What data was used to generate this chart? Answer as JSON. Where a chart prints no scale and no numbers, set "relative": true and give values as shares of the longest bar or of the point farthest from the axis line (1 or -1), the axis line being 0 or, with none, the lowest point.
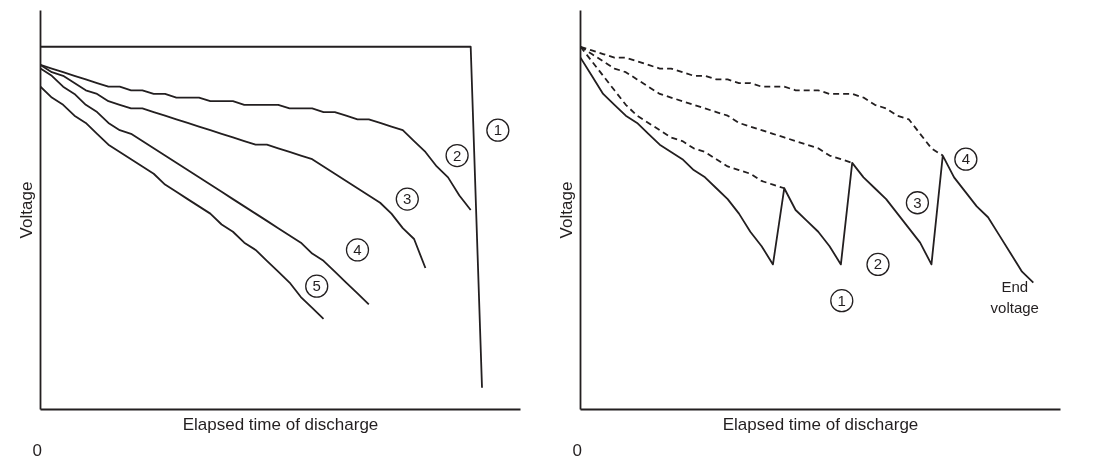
{
  "chart_data": [
    {
      "type": "line",
      "relative": true,
      "xlabel": "Elapsed time of discharge",
      "ylabel": "Voltage",
      "line_style": "solid",
      "marker": "none",
      "categories": [
        null,
        null,
        null,
        null,
        null,
        null,
        null,
        null,
        null,
        null,
        null,
        null,
        null,
        null,
        null,
        null,
        null,
        null,
        null,
        null,
        null,
        null,
        null,
        null,
        null,
        null,
        null,
        null,
        null,
        null,
        null,
        null,
        null,
        null,
        null,
        null,
        null,
        null,
        null,
        null,
        null
      ],
      "series": [
        {
          "color": "#231f20",
          "values": [
            1,
            1,
            1,
            1,
            1,
            1,
            1,
            1,
            1,
            1,
            1,
            1,
            1,
            1,
            1,
            1,
            1,
            1,
            1,
            1,
            1,
            1,
            1,
            1,
            1,
            1,
            1,
            1,
            1,
            1,
            1,
            1,
            1,
            1,
            1,
            1,
            1,
            1,
            1,
            0.06,
            null
          ]
        },
        {
          "color": "#231f20",
          "values": [
            0.95,
            0.94,
            0.93,
            0.92,
            0.91,
            0.9,
            0.89,
            0.89,
            0.88,
            0.88,
            0.87,
            0.87,
            0.86,
            0.86,
            0.86,
            0.85,
            0.85,
            0.85,
            0.84,
            0.84,
            0.84,
            0.84,
            0.83,
            0.83,
            0.83,
            0.82,
            0.82,
            0.81,
            0.8,
            0.8,
            0.79,
            0.78,
            0.77,
            0.74,
            0.71,
            0.67,
            0.64,
            0.59,
            0.55,
            null,
            null
          ]
        },
        {
          "color": "#231f20",
          "values": [
            0.95,
            0.93,
            0.92,
            0.9,
            0.88,
            0.87,
            0.85,
            0.84,
            0.83,
            0.83,
            0.82,
            0.81,
            0.8,
            0.79,
            0.78,
            0.77,
            0.76,
            0.75,
            0.74,
            0.73,
            0.73,
            0.72,
            0.71,
            0.7,
            0.69,
            0.67,
            0.65,
            0.63,
            0.61,
            0.59,
            0.57,
            0.54,
            0.5,
            0.47,
            0.39,
            null,
            null,
            null,
            null,
            null,
            null
          ]
        },
        {
          "color": "#231f20",
          "values": [
            0.94,
            0.92,
            0.89,
            0.87,
            0.84,
            0.82,
            0.79,
            0.77,
            0.76,
            0.74,
            0.72,
            0.7,
            0.68,
            0.66,
            0.64,
            0.62,
            0.6,
            0.58,
            0.56,
            0.54,
            0.52,
            0.5,
            0.48,
            0.46,
            0.43,
            0.41,
            0.38,
            0.35,
            0.32,
            0.29,
            null,
            null,
            null,
            null,
            null,
            null,
            null,
            null,
            null,
            null,
            null
          ]
        },
        {
          "color": "#231f20",
          "values": [
            0.89,
            0.86,
            0.84,
            0.81,
            0.79,
            0.76,
            0.73,
            0.71,
            0.69,
            0.67,
            0.65,
            0.62,
            0.6,
            0.58,
            0.56,
            0.54,
            0.51,
            0.49,
            0.46,
            0.44,
            0.41,
            0.38,
            0.35,
            0.31,
            0.28,
            0.25,
            null,
            null,
            null,
            null,
            null,
            null,
            null,
            null,
            null,
            null,
            null,
            null,
            null,
            null,
            null
          ]
        }
      ],
      "annotations": [
        "0",
        "1",
        "2",
        "3",
        "4",
        "5"
      ]
    },
    {
      "type": "line",
      "relative": true,
      "xlabel": "Elapsed time of discharge",
      "ylabel": "Voltage",
      "marker": "none",
      "categories": [
        null,
        null,
        null,
        null,
        null,
        null,
        null,
        null,
        null,
        null,
        null,
        null,
        null,
        null,
        null,
        null,
        null,
        null,
        null,
        null,
        null,
        null,
        null,
        null,
        null,
        null,
        null,
        null,
        null,
        null,
        null,
        null,
        null,
        null,
        null,
        null,
        null,
        null,
        null,
        null,
        null
      ],
      "series": [
        {
          "color": "#231f20",
          "line_style": "solid",
          "values": [
            0.97,
            0.92,
            0.87,
            0.84,
            0.81,
            0.79,
            0.76,
            0.73,
            0.71,
            0.69,
            0.66,
            0.64,
            0.61,
            0.58,
            0.54,
            0.49,
            0.45,
            0.4,
            0.61,
            0.55,
            0.52,
            0.49,
            0.45,
            0.4,
            0.68,
            0.64,
            0.61,
            0.58,
            0.54,
            0.5,
            0.46,
            0.4,
            0.7,
            0.64,
            0.6,
            0.56,
            0.53,
            0.48,
            0.43,
            0.38,
            0.35
          ]
        },
        {
          "color": "#231f20",
          "line_style": "dashed",
          "values": [
            1,
            0.96,
            0.92,
            0.88,
            0.84,
            0.81,
            0.79,
            0.77,
            0.75,
            0.74,
            0.72,
            0.71,
            0.69,
            0.67,
            0.66,
            0.65,
            0.63,
            0.62,
            0.61,
            null,
            null,
            null,
            null,
            null,
            null,
            null,
            null,
            null,
            null,
            null,
            null,
            null,
            null,
            null,
            null,
            null,
            null,
            null,
            null,
            null,
            null
          ]
        },
        {
          "color": "#231f20",
          "line_style": "dashed",
          "values": [
            1,
            0.98,
            0.96,
            0.94,
            0.93,
            0.91,
            0.89,
            0.87,
            0.86,
            0.85,
            0.84,
            0.83,
            0.82,
            0.81,
            0.79,
            0.78,
            0.77,
            0.76,
            0.75,
            0.74,
            0.73,
            0.72,
            0.7,
            0.69,
            0.68,
            null,
            null,
            null,
            null,
            null,
            null,
            null,
            null,
            null,
            null,
            null,
            null,
            null,
            null,
            null,
            null
          ]
        },
        {
          "color": "#231f20",
          "line_style": "dashed",
          "values": [
            1,
            0.99,
            0.98,
            0.97,
            0.97,
            0.96,
            0.95,
            0.94,
            0.94,
            0.93,
            0.92,
            0.92,
            0.91,
            0.91,
            0.9,
            0.9,
            0.89,
            0.89,
            0.89,
            0.88,
            0.88,
            0.88,
            0.87,
            0.87,
            0.87,
            0.86,
            0.84,
            0.83,
            0.81,
            0.8,
            0.76,
            0.72,
            0.7,
            null,
            null,
            null,
            null,
            null,
            null,
            null,
            null
          ]
        }
      ],
      "annotations": [
        "0",
        "1",
        "2",
        "3",
        "4",
        "End\nvoltage"
      ]
    }
  ]
}
